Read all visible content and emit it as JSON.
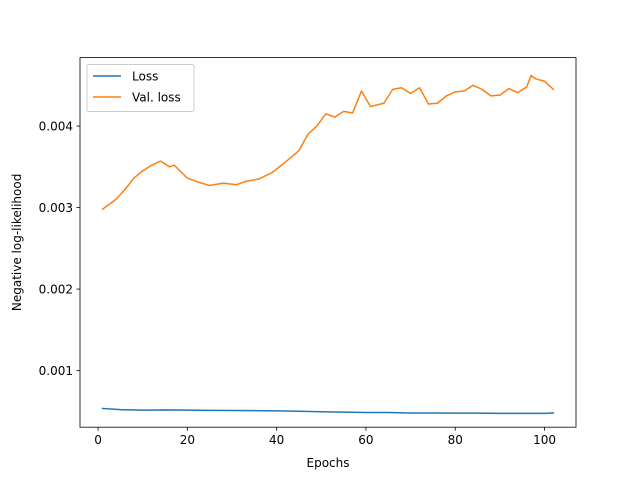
{
  "chart_data": {
    "type": "line",
    "title": "",
    "xlabel": "Epochs",
    "ylabel": "Negative log-likelihood",
    "xlim": [
      -4.05,
      107.05
    ],
    "ylim": [
      0.000305,
      0.00484
    ],
    "xticks": [
      0,
      20,
      40,
      60,
      80,
      100
    ],
    "yticks": [
      0.001,
      0.002,
      0.003,
      0.004
    ],
    "ytick_labels": [
      "0.001",
      "0.002",
      "0.003",
      "0.004"
    ],
    "grid": false,
    "legend_position": "top-left",
    "series": [
      {
        "name": "Loss",
        "color": "#1f77b4",
        "x": [
          1,
          5,
          10,
          15,
          20,
          25,
          30,
          35,
          40,
          45,
          50,
          55,
          60,
          65,
          70,
          75,
          80,
          85,
          90,
          95,
          100,
          102
        ],
        "y": [
          0.000535,
          0.00052,
          0.000515,
          0.000518,
          0.000515,
          0.000512,
          0.00051,
          0.000508,
          0.000505,
          0.0005,
          0.000495,
          0.00049,
          0.000485,
          0.000485,
          0.00048,
          0.00048,
          0.000478,
          0.000478,
          0.000475,
          0.000475,
          0.000475,
          0.00048
        ]
      },
      {
        "name": "Val. loss",
        "color": "#ff7f0e",
        "x": [
          1,
          4,
          6,
          8,
          10,
          12,
          14,
          16,
          17,
          18,
          20,
          22,
          25,
          28,
          31,
          33,
          36,
          39,
          42,
          45,
          47,
          49,
          51,
          53,
          55,
          57,
          59,
          61,
          64,
          66,
          68,
          70,
          72,
          74,
          76,
          78,
          80,
          82,
          84,
          86,
          88,
          90,
          92,
          94,
          96,
          97,
          98,
          100,
          102
        ],
        "y": [
          0.00298,
          0.0031,
          0.00322,
          0.00336,
          0.00345,
          0.00352,
          0.00357,
          0.0035,
          0.00352,
          0.00347,
          0.00336,
          0.00332,
          0.00327,
          0.0033,
          0.00328,
          0.00332,
          0.00335,
          0.00343,
          0.00356,
          0.0037,
          0.0039,
          0.004,
          0.00415,
          0.00411,
          0.00418,
          0.00416,
          0.00443,
          0.00424,
          0.00428,
          0.00445,
          0.00447,
          0.0044,
          0.00447,
          0.00427,
          0.00428,
          0.00437,
          0.00442,
          0.00443,
          0.0045,
          0.00445,
          0.00437,
          0.00438,
          0.00446,
          0.00441,
          0.00448,
          0.00462,
          0.00458,
          0.00455,
          0.00445
        ]
      }
    ]
  }
}
